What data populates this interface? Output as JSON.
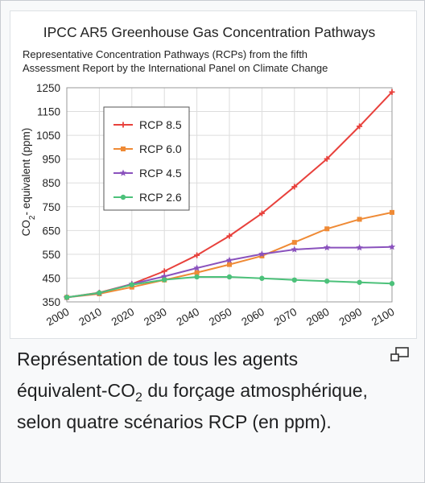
{
  "chart_data": {
    "type": "line",
    "title": "IPCC AR5 Greenhouse Gas Concentration Pathways",
    "subtitle": [
      "Representative Concentration Pathways (RCPs) from the fifth",
      "Assessment Report by the International Panel on Climate Change"
    ],
    "ylabel_main": "CO",
    "ylabel_sub": "2",
    "ylabel_rest": "- equivalent (ppm)",
    "xlabel": "",
    "x": [
      2000,
      2010,
      2020,
      2030,
      2040,
      2050,
      2060,
      2070,
      2080,
      2090,
      2100
    ],
    "ylim": [
      350,
      1250
    ],
    "yticks": [
      350,
      450,
      550,
      650,
      750,
      850,
      950,
      1050,
      1150,
      1250
    ],
    "grid": true,
    "legend_position": "top-left",
    "series": [
      {
        "name": "RCP 8.5",
        "color": "#e8413c",
        "marker": "plus",
        "values": [
          369,
          389,
          425,
          479,
          546,
          627,
          722,
          834,
          951,
          1088,
          1232
        ]
      },
      {
        "name": "RCP 6.0",
        "color": "#ef8a35",
        "marker": "square",
        "values": [
          369,
          384,
          412,
          442,
          473,
          507,
          543,
          600,
          657,
          697,
          726
        ]
      },
      {
        "name": "RCP 4.5",
        "color": "#8a52bd",
        "marker": "star",
        "values": [
          369,
          387,
          425,
          457,
          492,
          525,
          551,
          570,
          578,
          578,
          581
        ]
      },
      {
        "name": "RCP 2.6",
        "color": "#4cc17a",
        "marker": "circle",
        "values": [
          369,
          388,
          422,
          443,
          455,
          455,
          449,
          442,
          437,
          432,
          427
        ]
      }
    ]
  },
  "caption": {
    "part1": "Représentation de tous les agents équivalent-CO",
    "sub": "2",
    "part2": " du forçage atmosphérique, selon quatre scénarios RCP (en ppm)."
  },
  "icons": {
    "magnify": "magnify-clip-icon"
  }
}
